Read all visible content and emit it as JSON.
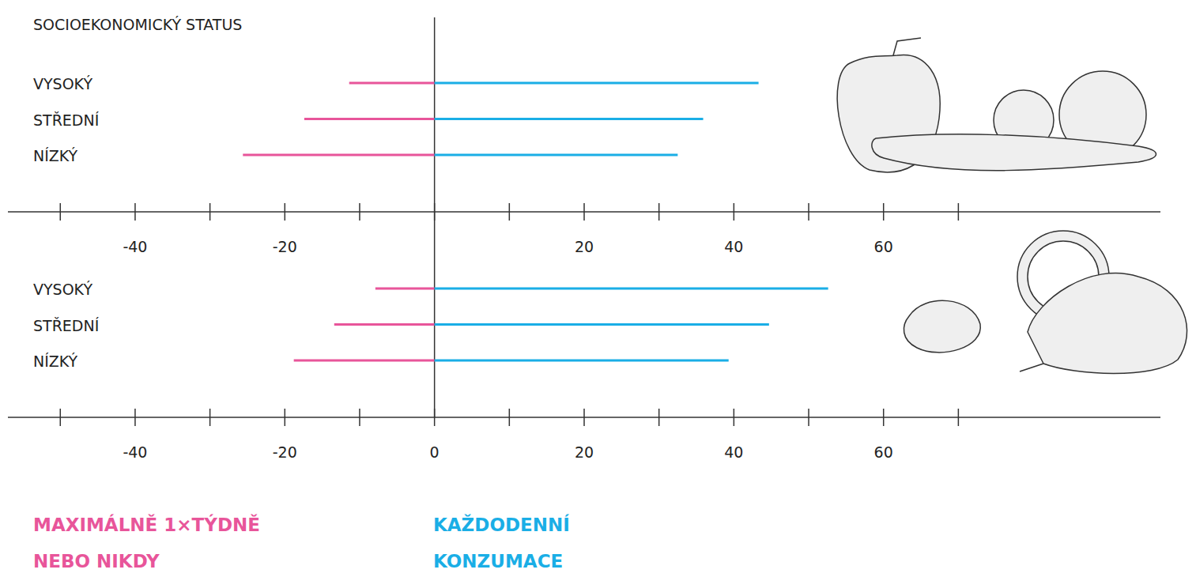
{
  "chart_data": [
    {
      "type": "bar",
      "orientation": "horizontal",
      "stacked": false,
      "title": "SOCIOEKONOMICKÝ STATUS",
      "categories": [
        "VYSOKÝ",
        "STŘEDNÍ",
        "NÍZKÝ"
      ],
      "series": [
        {
          "color": "#e8559a",
          "values": [
            -11.4,
            -17.4,
            -25.6
          ]
        },
        {
          "color": "#1aaee6",
          "values": [
            43.3,
            35.9,
            32.5
          ]
        }
      ],
      "xlim": [
        -57,
        97
      ],
      "xticks": [
        {
          "value": -50,
          "label": null
        },
        -40,
        {
          "value": -30,
          "label": null
        },
        -20,
        {
          "value": -10,
          "label": null
        },
        {
          "value": 0,
          "label": null
        },
        {
          "value": 10,
          "label": null
        },
        20,
        {
          "value": 30,
          "label": null
        },
        40,
        {
          "value": 50,
          "label": null
        },
        60,
        {
          "value": 70,
          "label": null
        }
      ],
      "grid": false
    },
    {
      "type": "bar",
      "orientation": "horizontal",
      "stacked": false,
      "categories": [
        "VYSOKÝ",
        "STŘEDNÍ",
        "NÍZKÝ"
      ],
      "series": [
        {
          "name": "MAXIMÁLNĚ 1×TÝDNĚ NEBO NIKDY",
          "color": "#e8559a",
          "values": [
            -7.9,
            -13.4,
            -18.8
          ]
        },
        {
          "name": "KAŽDODENNÍ KONZUMACE",
          "color": "#1aaee6",
          "values": [
            52.6,
            44.7,
            39.3
          ]
        }
      ],
      "xlim": [
        -57,
        97
      ],
      "xticks": [
        {
          "value": -50,
          "label": null
        },
        -40,
        {
          "value": -30,
          "label": null
        },
        -20,
        {
          "value": -10,
          "label": null
        },
        0,
        {
          "value": 10,
          "label": null
        },
        20,
        {
          "value": 30,
          "label": null
        },
        40,
        {
          "value": 50,
          "label": null
        },
        60,
        {
          "value": 70,
          "label": null
        }
      ],
      "grid": false,
      "legend": "bottom"
    }
  ]
}
